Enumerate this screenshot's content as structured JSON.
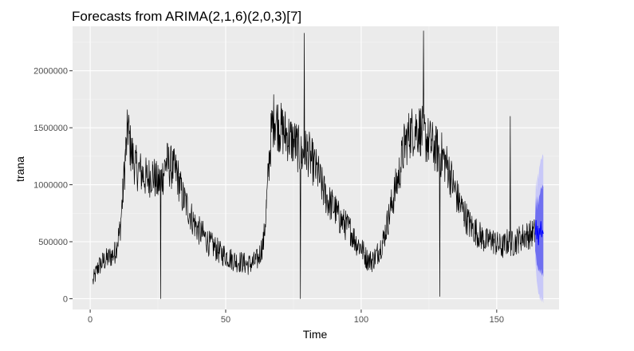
{
  "chart_data": {
    "type": "line",
    "title": "Forecasts from ARIMA(2,1,6)(2,0,3)[7]",
    "xlabel": "Time",
    "ylabel": "trana",
    "xlim": [
      -6.5,
      173
    ],
    "ylim": [
      -95000,
      2390000
    ],
    "x_ticks": [
      0,
      50,
      100,
      150
    ],
    "y_ticks": [
      0,
      500000,
      1000000,
      1500000,
      2000000
    ],
    "x_tick_labels": [
      "0",
      "50",
      "100",
      "150"
    ],
    "y_tick_labels": [
      "0",
      "500000",
      "1000000",
      "1500000",
      "2000000"
    ],
    "grid": true,
    "legend": "none",
    "colors": {
      "panel": "#ebebeb",
      "grid_major": "#ffffff",
      "grid_minor": "#f5f5f5",
      "series": "#000000",
      "forecast": "#0000ff",
      "band_80": "#6f6ff0",
      "band_95": "#c8c8f8"
    },
    "series": [
      {
        "kind": "observed",
        "points": [
          [
            1,
            150000
          ],
          [
            3,
            280000
          ],
          [
            5,
            330000
          ],
          [
            7,
            360000
          ],
          [
            9,
            400000
          ],
          [
            11,
            600000
          ],
          [
            12,
            900000
          ],
          [
            13,
            1250000
          ],
          [
            14,
            1500000
          ],
          [
            15,
            1300000
          ],
          [
            17,
            1150000
          ],
          [
            19,
            1100000
          ],
          [
            21,
            1050000
          ],
          [
            23,
            1100000
          ],
          [
            25,
            1000000
          ],
          [
            27,
            1100000
          ],
          [
            28,
            1200000
          ],
          [
            30,
            1150000
          ],
          [
            32,
            1100000
          ],
          [
            34,
            900000
          ],
          [
            36,
            800000
          ],
          [
            38,
            680000
          ],
          [
            40,
            600000
          ],
          [
            42,
            550000
          ],
          [
            44,
            480000
          ],
          [
            46,
            450000
          ],
          [
            48,
            400000
          ],
          [
            50,
            380000
          ],
          [
            52,
            350000
          ],
          [
            54,
            330000
          ],
          [
            56,
            320000
          ],
          [
            58,
            300000
          ],
          [
            60,
            310000
          ],
          [
            62,
            350000
          ],
          [
            64,
            500000
          ],
          [
            65,
            800000
          ],
          [
            66,
            1200000
          ],
          [
            67,
            1500000
          ],
          [
            68,
            1600000
          ],
          [
            70,
            1500000
          ],
          [
            72,
            1450000
          ],
          [
            74,
            1400000
          ],
          [
            76,
            1350000
          ],
          [
            78,
            1250000
          ],
          [
            80,
            1300000
          ],
          [
            82,
            1200000
          ],
          [
            84,
            1100000
          ],
          [
            86,
            950000
          ],
          [
            88,
            850000
          ],
          [
            90,
            800000
          ],
          [
            92,
            700000
          ],
          [
            94,
            650000
          ],
          [
            96,
            600000
          ],
          [
            98,
            500000
          ],
          [
            100,
            450000
          ],
          [
            102,
            350000
          ],
          [
            104,
            330000
          ],
          [
            106,
            400000
          ],
          [
            108,
            500000
          ],
          [
            110,
            700000
          ],
          [
            112,
            900000
          ],
          [
            114,
            1100000
          ],
          [
            116,
            1350000
          ],
          [
            118,
            1450000
          ],
          [
            120,
            1500000
          ],
          [
            122,
            1480000
          ],
          [
            124,
            1400000
          ],
          [
            126,
            1350000
          ],
          [
            128,
            1300000
          ],
          [
            130,
            1250000
          ],
          [
            132,
            1150000
          ],
          [
            134,
            1000000
          ],
          [
            136,
            850000
          ],
          [
            138,
            750000
          ],
          [
            140,
            650000
          ],
          [
            142,
            600000
          ],
          [
            144,
            550000
          ],
          [
            146,
            500000
          ],
          [
            148,
            520000
          ],
          [
            150,
            480000
          ],
          [
            152,
            450000
          ],
          [
            154,
            500000
          ],
          [
            156,
            480000
          ],
          [
            158,
            520000
          ],
          [
            160,
            550000
          ],
          [
            162,
            560000
          ],
          [
            164,
            580000
          ]
        ]
      },
      {
        "kind": "forecast",
        "points": [
          [
            164.2,
            560000
          ],
          [
            164.5,
            690000
          ],
          [
            164.8,
            520000
          ],
          [
            165.1,
            640000
          ],
          [
            165.4,
            470000
          ],
          [
            165.7,
            620000
          ],
          [
            166.0,
            560000
          ],
          [
            166.3,
            680000
          ],
          [
            166.6,
            540000
          ],
          [
            166.9,
            600000
          ],
          [
            167.2,
            570000
          ]
        ]
      }
    ],
    "prediction_intervals": {
      "x": [
        164.2,
        164.5,
        164.8,
        165.1,
        165.4,
        165.7,
        166.0,
        166.3,
        166.6,
        166.9,
        167.2
      ],
      "lo80": [
        420000,
        380000,
        300000,
        280000,
        240000,
        260000,
        220000,
        260000,
        200000,
        230000,
        190000
      ],
      "hi80": [
        700000,
        900000,
        780000,
        900000,
        820000,
        900000,
        920000,
        980000,
        960000,
        1000000,
        980000
      ],
      "lo95": [
        340000,
        250000,
        150000,
        100000,
        40000,
        40000,
        -20000,
        20000,
        -30000,
        0,
        -40000
      ],
      "hi95": [
        800000,
        1050000,
        950000,
        1100000,
        1050000,
        1150000,
        1180000,
        1230000,
        1220000,
        1270000,
        1250000
      ]
    },
    "spikes": [
      {
        "x": 26,
        "y": 0
      },
      {
        "x": 77.5,
        "y": 0
      },
      {
        "x": 79,
        "y": 2330000
      },
      {
        "x": 123,
        "y": 2350000
      },
      {
        "x": 129,
        "y": 20000
      },
      {
        "x": 155,
        "y": 1600000
      }
    ]
  }
}
